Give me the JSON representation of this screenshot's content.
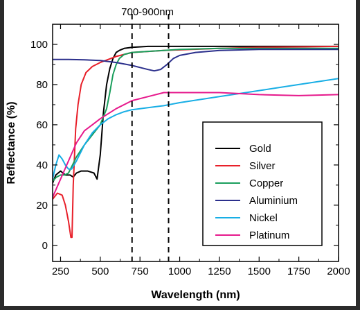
{
  "chart_data": {
    "type": "line",
    "title": "",
    "xlabel": "Wavelength (nm)",
    "ylabel": "Reflectance (%)",
    "xlim": [
      200,
      2000
    ],
    "ylim": [
      -8,
      110
    ],
    "x_ticks": [
      250,
      500,
      750,
      1000,
      1250,
      1500,
      1750,
      2000
    ],
    "x_tick_labels": [
      "250",
      "500",
      "750",
      "1000",
      "1250",
      "1500",
      "1750",
      "2000"
    ],
    "y_ticks": [
      0,
      20,
      40,
      60,
      80,
      100
    ],
    "y_tick_labels": [
      "0",
      "20",
      "40",
      "60",
      "80",
      "100"
    ],
    "grid": false,
    "legend_position": "bottom-right",
    "annotation": {
      "text": "700-900nm",
      "lines_x": [
        700,
        930
      ]
    },
    "series": [
      {
        "name": "Gold",
        "color": "#000000",
        "x": [
          200,
          220,
          250,
          280,
          310,
          330,
          350,
          380,
          420,
          460,
          480,
          500,
          520,
          540,
          560,
          580,
          600,
          620,
          650,
          700,
          800,
          900,
          1000,
          1250,
          1500,
          1750,
          2000
        ],
        "y": [
          31,
          35,
          37,
          35,
          35,
          34,
          36,
          37,
          37,
          36,
          33,
          45,
          66,
          80,
          88,
          93,
          96,
          97,
          98,
          98.5,
          99,
          99,
          99,
          99,
          99,
          99,
          99
        ]
      },
      {
        "name": "Silver",
        "color": "#e8202a",
        "x": [
          200,
          230,
          260,
          280,
          300,
          315,
          322,
          330,
          345,
          360,
          380,
          410,
          450,
          500,
          600,
          700,
          900,
          1250,
          1500,
          2000
        ],
        "y": [
          23,
          26,
          25,
          20,
          12,
          4,
          4,
          30,
          58,
          70,
          80,
          86,
          89,
          91,
          94,
          96,
          97,
          98,
          98.5,
          99
        ]
      },
      {
        "name": "Copper",
        "color": "#1a9e5c",
        "x": [
          200,
          225,
          250,
          275,
          300,
          325,
          350,
          400,
          450,
          500,
          520,
          540,
          560,
          580,
          600,
          620,
          650,
          700,
          800,
          900,
          1000,
          1250,
          1500,
          2000
        ],
        "y": [
          32,
          34,
          35,
          35,
          36,
          40,
          44,
          50,
          55,
          60,
          64,
          68,
          76,
          85,
          90,
          93,
          95,
          96,
          96.5,
          97,
          97.5,
          98,
          98,
          98
        ]
      },
      {
        "name": "Aluminium",
        "color": "#2b2f8c",
        "x": [
          200,
          300,
          400,
          500,
          600,
          700,
          750,
          800,
          840,
          880,
          920,
          960,
          1000,
          1100,
          1250,
          1500,
          2000
        ],
        "y": [
          92.5,
          92.5,
          92.3,
          92,
          91,
          89.5,
          88.5,
          87.5,
          86.8,
          87.5,
          90,
          93,
          94.5,
          96,
          97,
          97.5,
          97.5
        ]
      },
      {
        "name": "Nickel",
        "color": "#18aee5",
        "x": [
          200,
          220,
          240,
          260,
          280,
          300,
          320,
          350,
          400,
          450,
          500,
          550,
          600,
          650,
          700,
          750,
          800,
          900,
          1000,
          1250,
          1500,
          1750,
          2000
        ],
        "y": [
          33,
          40,
          45,
          43,
          40,
          38,
          38,
          42,
          50,
          56,
          60,
          63,
          65,
          66.5,
          67.5,
          68,
          68.5,
          69.5,
          71,
          74,
          77,
          80,
          83
        ]
      },
      {
        "name": "Platinum",
        "color": "#e6198c",
        "x": [
          200,
          250,
          300,
          350,
          400,
          450,
          500,
          600,
          700,
          800,
          900,
          1000,
          1100,
          1250,
          1500,
          1750,
          2000
        ],
        "y": [
          24,
          33,
          42,
          51,
          57,
          60,
          63,
          68,
          72,
          74,
          76,
          76,
          76,
          76,
          75,
          74.5,
          75
        ]
      }
    ]
  }
}
